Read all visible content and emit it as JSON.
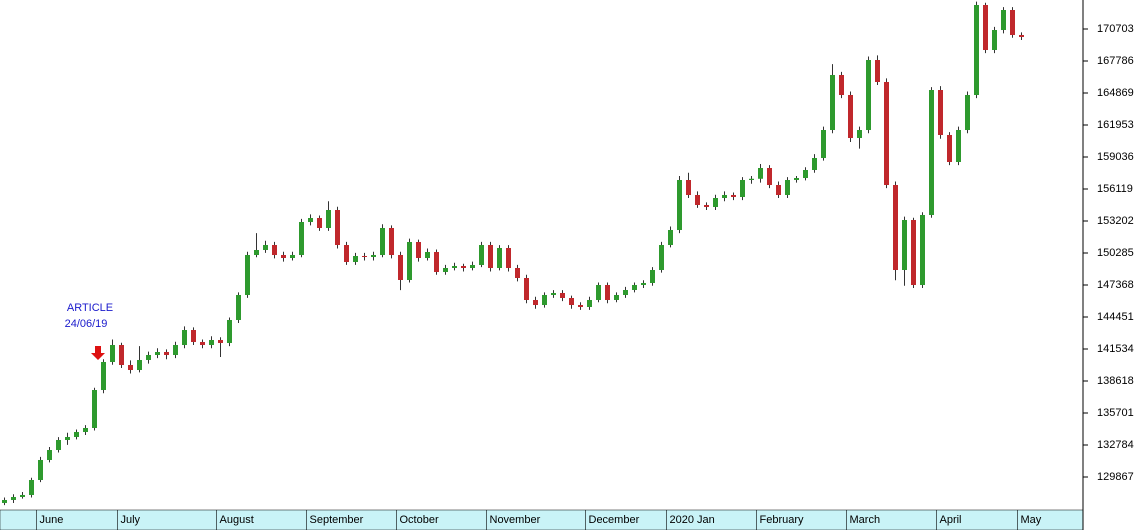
{
  "chart_data": {
    "type": "candlestick",
    "annotation": [
      "ARTICLE",
      "24/06/19"
    ],
    "up_color": "#2e9a2e",
    "down_color": "#c0282c",
    "ylim": [
      126859,
      173346
    ],
    "yticks": [
      129867,
      132784,
      135701,
      138618,
      141534,
      144451,
      147368,
      150285,
      153202,
      156119,
      159036,
      161953,
      164869,
      167786,
      170703
    ],
    "categories": [
      null,
      null,
      null,
      null,
      "June",
      null,
      null,
      null,
      null,
      null,
      null,
      null,
      null,
      "July",
      null,
      null,
      null,
      null,
      null,
      null,
      null,
      null,
      null,
      null,
      "August",
      null,
      null,
      null,
      null,
      null,
      null,
      null,
      null,
      null,
      "September",
      null,
      null,
      null,
      null,
      null,
      null,
      null,
      null,
      null,
      "October",
      null,
      null,
      null,
      null,
      null,
      null,
      null,
      null,
      null,
      "November",
      null,
      null,
      null,
      null,
      null,
      null,
      null,
      null,
      null,
      null,
      "December",
      null,
      null,
      null,
      null,
      null,
      null,
      null,
      null,
      "2020 Jan",
      null,
      null,
      null,
      null,
      null,
      null,
      null,
      null,
      null,
      "February",
      null,
      null,
      null,
      null,
      null,
      null,
      null,
      null,
      null,
      "March",
      null,
      null,
      null,
      null,
      null,
      null,
      null,
      null,
      null,
      "April",
      null,
      null,
      null,
      null,
      null,
      null,
      null,
      null,
      "May"
    ],
    "candles": [
      [
        127500,
        128000,
        127300,
        127771
      ],
      [
        127771,
        128300,
        127500,
        128044
      ],
      [
        128044,
        128500,
        127900,
        128227
      ],
      [
        128227,
        129800,
        128000,
        129594
      ],
      [
        129594,
        131700,
        129400,
        131417
      ],
      [
        131417,
        132600,
        131200,
        132328
      ],
      [
        132328,
        133500,
        132100,
        133240
      ],
      [
        133240,
        133900,
        132800,
        133513
      ],
      [
        133513,
        134200,
        133300,
        133969
      ],
      [
        133969,
        134600,
        133700,
        134334
      ],
      [
        134334,
        138000,
        134100,
        137797
      ],
      [
        137797,
        140600,
        137500,
        140350
      ],
      [
        140350,
        142400,
        140100,
        141899
      ],
      [
        141899,
        142100,
        139800,
        140076
      ],
      [
        140076,
        140500,
        139300,
        139620
      ],
      [
        139620,
        141800,
        139400,
        140532
      ],
      [
        140532,
        141300,
        140200,
        140988
      ],
      [
        140988,
        141600,
        140700,
        141261
      ],
      [
        141261,
        141500,
        140600,
        140988
      ],
      [
        140988,
        142200,
        140700,
        141899
      ],
      [
        141899,
        143600,
        141600,
        143266
      ],
      [
        143266,
        143500,
        141900,
        142173
      ],
      [
        142173,
        142400,
        141600,
        141899
      ],
      [
        141899,
        142700,
        141600,
        142355
      ],
      [
        142355,
        142600,
        140800,
        142082
      ],
      [
        142082,
        144400,
        141800,
        144178
      ],
      [
        144178,
        146700,
        143900,
        146457
      ],
      [
        146457,
        150400,
        146200,
        150103
      ],
      [
        150103,
        152100,
        149900,
        150558
      ],
      [
        150558,
        151400,
        150300,
        151014
      ],
      [
        151014,
        151300,
        149800,
        150103
      ],
      [
        150103,
        150400,
        149500,
        149829
      ],
      [
        149829,
        150400,
        149600,
        150103
      ],
      [
        150103,
        153400,
        149900,
        153111
      ],
      [
        153111,
        153800,
        152800,
        153475
      ],
      [
        153475,
        153700,
        152300,
        152564
      ],
      [
        152564,
        155000,
        152300,
        154204
      ],
      [
        154204,
        154500,
        150700,
        151014
      ],
      [
        151014,
        151300,
        149200,
        149465
      ],
      [
        149465,
        150300,
        149200,
        150012
      ],
      [
        150012,
        150300,
        149600,
        149920
      ],
      [
        149920,
        150400,
        149600,
        150103
      ],
      [
        150103,
        152900,
        149900,
        152564
      ],
      [
        152564,
        152800,
        149800,
        150103
      ],
      [
        150103,
        150400,
        146900,
        147824
      ],
      [
        147824,
        151600,
        147600,
        151288
      ],
      [
        151288,
        151500,
        149500,
        149829
      ],
      [
        149829,
        150700,
        149600,
        150376
      ],
      [
        150376,
        150600,
        148300,
        148553
      ],
      [
        148553,
        149200,
        148300,
        148918
      ],
      [
        148918,
        149400,
        148700,
        149100
      ],
      [
        149100,
        149300,
        148600,
        148918
      ],
      [
        148918,
        149500,
        148700,
        149191
      ],
      [
        149191,
        151300,
        149000,
        151014
      ],
      [
        151014,
        151300,
        148600,
        148918
      ],
      [
        148918,
        151000,
        148700,
        150741
      ],
      [
        150741,
        151000,
        148600,
        148918
      ],
      [
        148918,
        149200,
        147700,
        148006
      ],
      [
        148006,
        148300,
        145700,
        146001
      ],
      [
        146001,
        146300,
        145200,
        145545
      ],
      [
        145545,
        146700,
        145300,
        146457
      ],
      [
        146457,
        146900,
        146200,
        146639
      ],
      [
        146639,
        146900,
        145900,
        146183
      ],
      [
        146183,
        146400,
        145200,
        145545
      ],
      [
        145545,
        145800,
        145100,
        145363
      ],
      [
        145363,
        146300,
        145100,
        146001
      ],
      [
        146001,
        147600,
        145800,
        147368
      ],
      [
        147368,
        147600,
        145700,
        146001
      ],
      [
        146001,
        146700,
        145800,
        146457
      ],
      [
        146457,
        147200,
        146200,
        146912
      ],
      [
        146912,
        147600,
        146700,
        147368
      ],
      [
        147368,
        147800,
        147100,
        147551
      ],
      [
        147551,
        149000,
        147300,
        148735
      ],
      [
        148735,
        151300,
        148500,
        151014
      ],
      [
        151014,
        152700,
        150800,
        152381
      ],
      [
        152381,
        157300,
        152100,
        156939
      ],
      [
        156939,
        157600,
        155300,
        155572
      ],
      [
        155572,
        155900,
        154400,
        154660
      ],
      [
        154660,
        154900,
        154200,
        154478
      ],
      [
        154478,
        155600,
        154200,
        155298
      ],
      [
        155298,
        155900,
        155000,
        155572
      ],
      [
        155572,
        155800,
        155100,
        155389
      ],
      [
        155389,
        157200,
        155100,
        156939
      ],
      [
        156939,
        157300,
        156600,
        157050
      ],
      [
        157050,
        158400,
        156700,
        158033
      ],
      [
        158033,
        158300,
        156200,
        156483
      ],
      [
        156483,
        156800,
        155300,
        155572
      ],
      [
        155572,
        157200,
        155300,
        156939
      ],
      [
        156939,
        157300,
        156700,
        157120
      ],
      [
        157120,
        158100,
        156900,
        157850
      ],
      [
        157850,
        159300,
        157600,
        158944
      ],
      [
        158944,
        161800,
        158700,
        161496
      ],
      [
        161496,
        167500,
        161200,
        166510
      ],
      [
        166510,
        166800,
        164400,
        164687
      ],
      [
        164687,
        165000,
        160400,
        160767
      ],
      [
        160767,
        161800,
        159800,
        161496
      ],
      [
        161496,
        168200,
        161200,
        167877
      ],
      [
        167877,
        168300,
        165600,
        165872
      ],
      [
        165872,
        166200,
        156200,
        156483
      ],
      [
        156483,
        156800,
        147800,
        148735
      ],
      [
        148735,
        153600,
        147300,
        153293
      ],
      [
        153293,
        153500,
        147100,
        147368
      ],
      [
        147368,
        154000,
        147100,
        153749
      ],
      [
        153749,
        165400,
        153500,
        165142
      ],
      [
        165142,
        165500,
        160700,
        161041
      ],
      [
        161041,
        161300,
        158300,
        158580
      ],
      [
        158580,
        161800,
        158300,
        161496
      ],
      [
        161496,
        165000,
        161200,
        164687
      ],
      [
        164687,
        173200,
        164400,
        172890
      ],
      [
        172890,
        173100,
        168500,
        168788
      ],
      [
        168788,
        170900,
        168500,
        170611
      ],
      [
        170611,
        172700,
        170300,
        172434
      ],
      [
        172434,
        172700,
        169900,
        170156
      ],
      [
        170156,
        170400,
        169700,
        169973
      ]
    ]
  }
}
